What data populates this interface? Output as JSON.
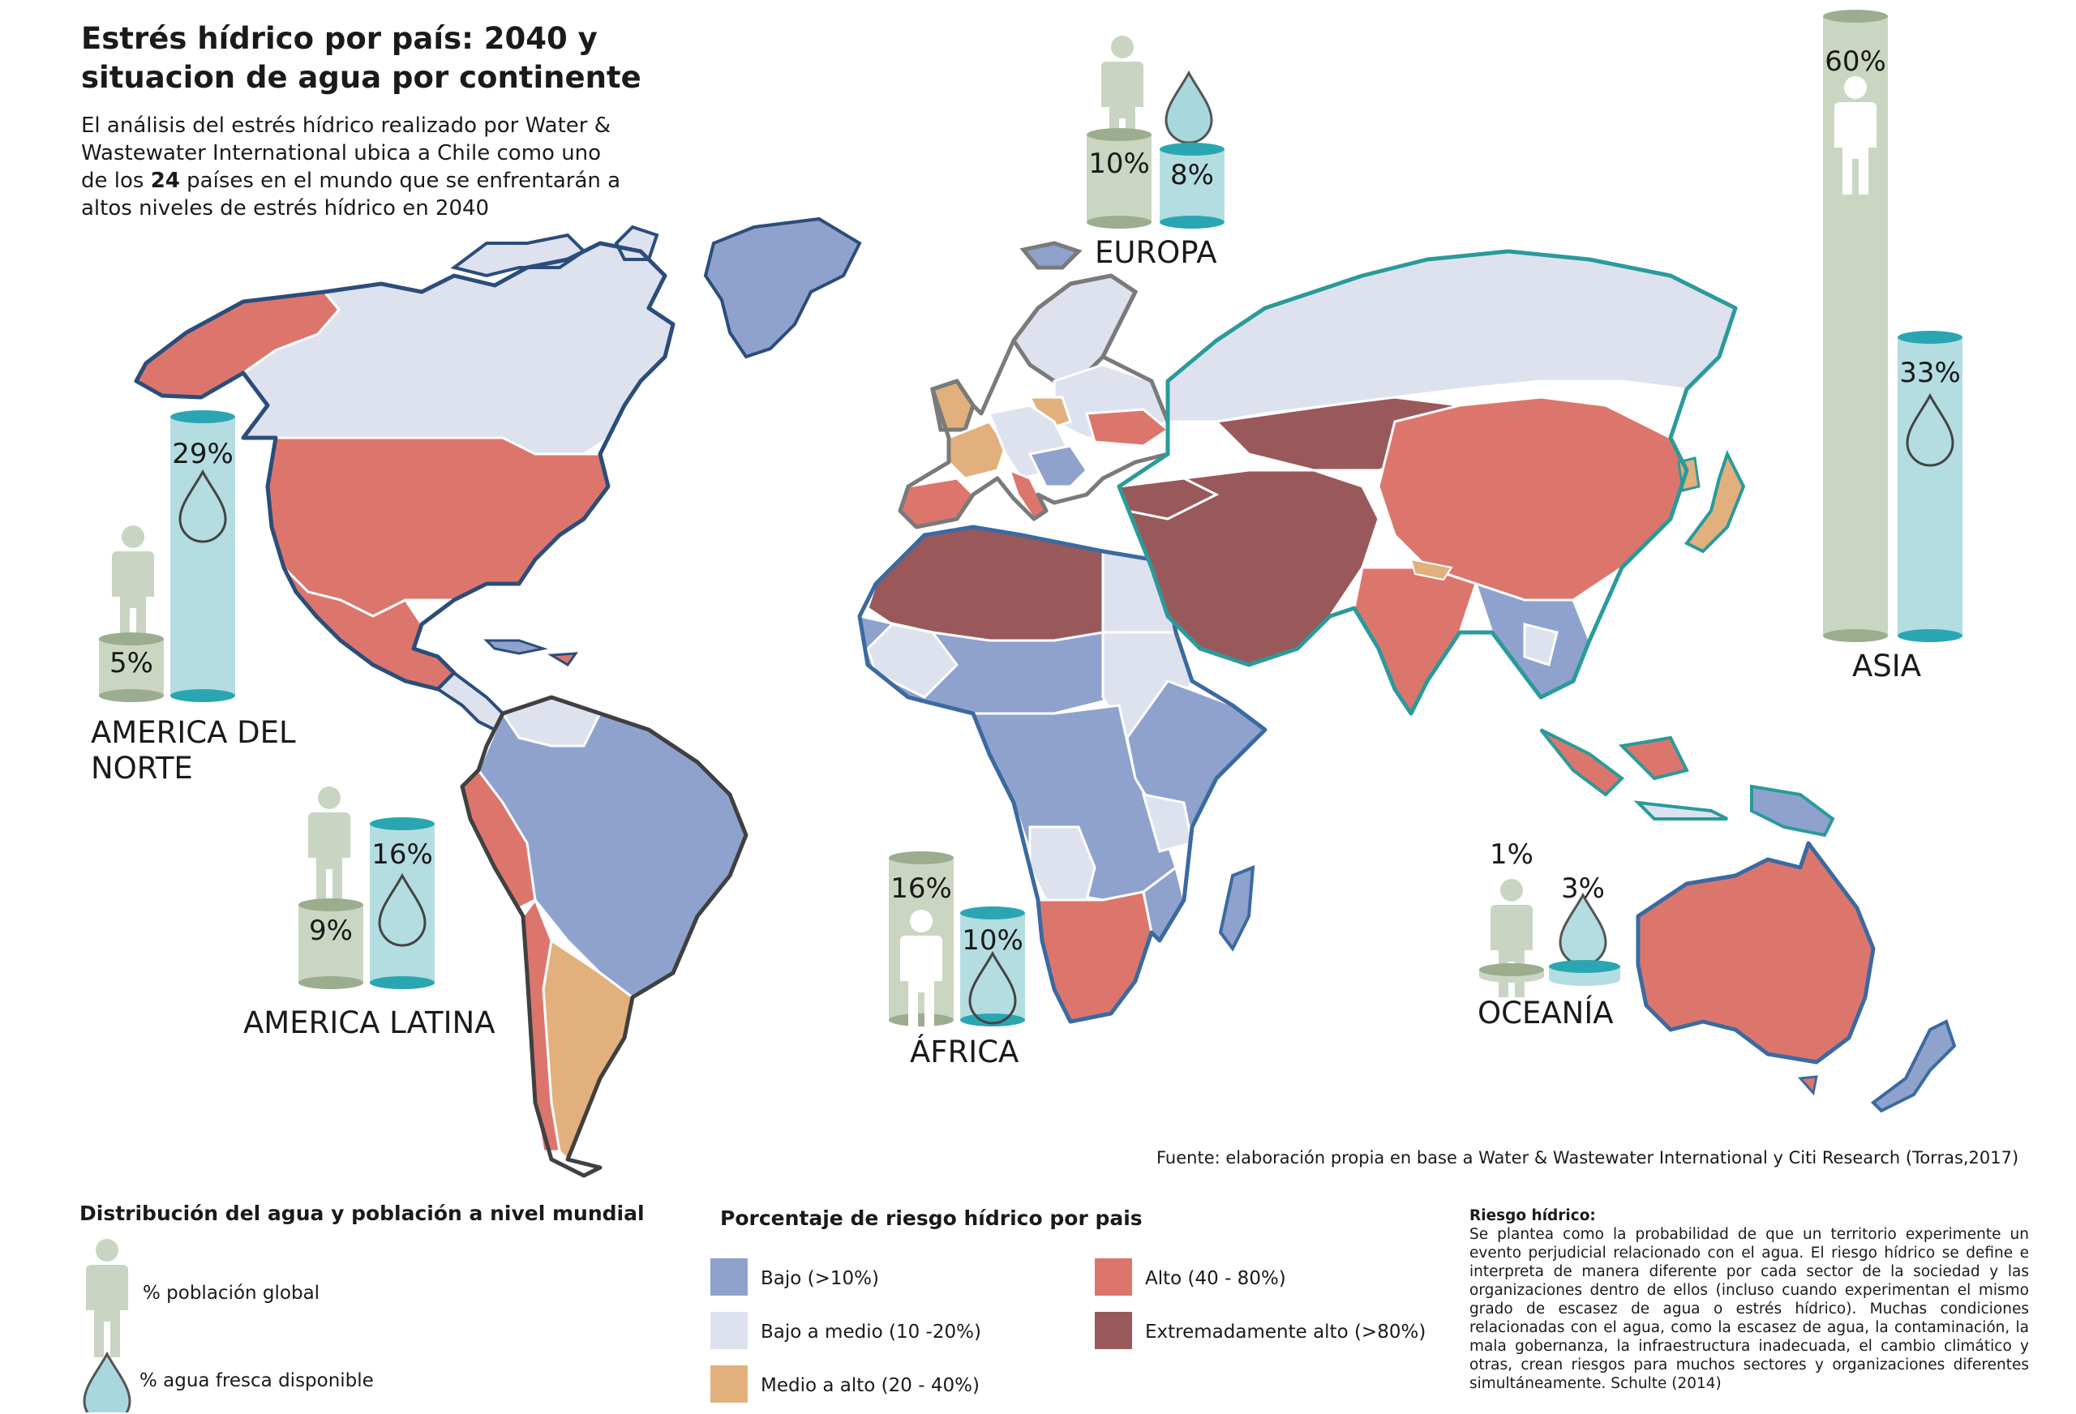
{
  "title": "Estrés hídrico por país: 2040 y situacion de agua  por continente",
  "intro": {
    "before": "El análisis del estrés hídrico realizado por Water & Wastewater International ubica a Chile como uno de los ",
    "highlight": "24",
    "after": " países en el mundo que se enfrentarán a altos niveles de estrés hídrico en 2040"
  },
  "colors": {
    "low": "#8ea2cd",
    "low_medium": "#dde2ee",
    "medium_high": "#e2b07c",
    "high": "#dc766d",
    "extreme": "#99595b",
    "population_cylinder": "#cbd6c2",
    "water_cylinder": "#b3dde1",
    "person_icon": "#c9d5c2",
    "drop_icon": "#a8d8de"
  },
  "continents": [
    {
      "name": "EUROPA",
      "population_pct": "10%",
      "water_pct": "8%"
    },
    {
      "name": "ASIA",
      "population_pct": "60%",
      "water_pct": "33%"
    },
    {
      "name": "AMERICA DEL NORTE",
      "population_pct": "5%",
      "water_pct": "29%"
    },
    {
      "name": "AMERICA LATINA",
      "population_pct": "9%",
      "water_pct": "16%"
    },
    {
      "name": "ÁFRICA",
      "population_pct": "16%",
      "water_pct": "10%"
    },
    {
      "name": "OCEANÍA",
      "population_pct": "1%",
      "water_pct": "3%"
    }
  ],
  "source": "Fuente: elaboración propia en base a Water & Wastewater International y Citi Research (Torras,2017)",
  "legend_distribution": {
    "title": "Distribución del agua y población a nivel mundial",
    "population": "% población global",
    "water": "% agua fresca disponible"
  },
  "legend_risk": {
    "title": "Porcentaje de riesgo hídrico por pais",
    "items": [
      {
        "label": "Bajo (>10%)",
        "color": "#8ea2cd"
      },
      {
        "label": "Bajo a medio (10 -20%)",
        "color": "#dde2ee"
      },
      {
        "label": "Medio a alto (20 - 40%)",
        "color": "#e2b07c"
      },
      {
        "label": "Alto (40 - 80%)",
        "color": "#dc766d"
      },
      {
        "label": "Extremadamente alto (>80%)",
        "color": "#99595b"
      }
    ]
  },
  "risk_definition": {
    "title": "Riesgo hídrico:",
    "text": "Se plantea como la probabilidad de que un territorio experimente un evento perjudicial relacionado con el agua. El riesgo hídrico se define e interpreta de manera diferente por cada sector de la sociedad y las organizaciones dentro de ellos (incluso cuando experimentan el mismo grado de escasez de agua o estrés hídrico). Muchas condiciones relacionadas con el agua, como la escasez de agua, la contaminación, la mala gobernanza, la infraestructura inadecuada, el cambio climático y otras, crean riesgos para muchos sectores y organizaciones diferentes simultáneamente. Schulte (2014)"
  }
}
